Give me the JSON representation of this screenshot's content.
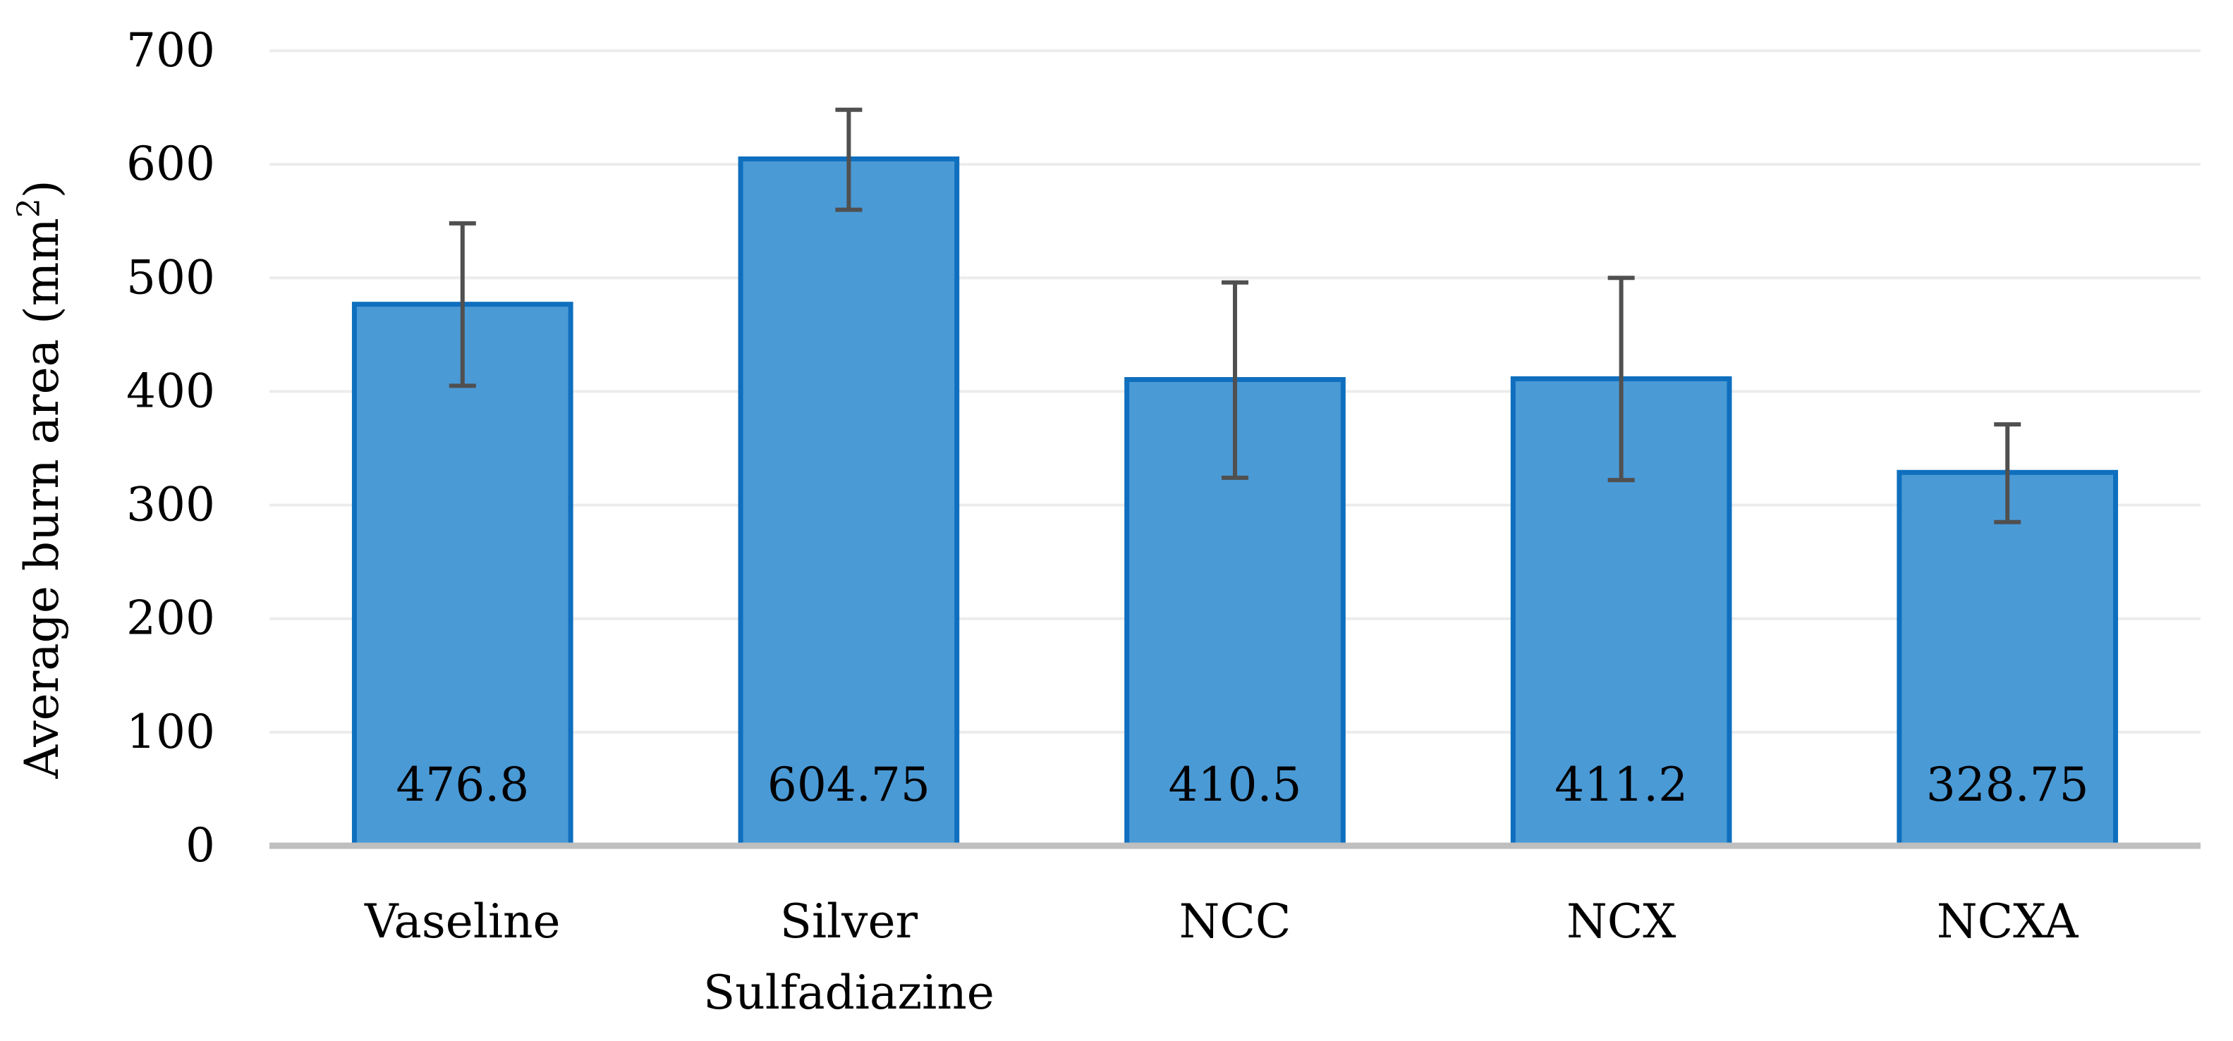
{
  "chart_data": {
    "type": "bar",
    "categories": [
      [
        "Vaseline"
      ],
      [
        "Silver",
        "Sulfadiazine"
      ],
      [
        "NCC"
      ],
      [
        "NCX"
      ],
      [
        "NCXA"
      ]
    ],
    "values": [
      476.8,
      604.75,
      410.5,
      411.2,
      328.75
    ],
    "data_labels": [
      "476.8",
      "604.75",
      "410.5",
      "411.2",
      "328.75"
    ],
    "error_bars": [
      {
        "low": 405,
        "high": 548
      },
      {
        "low": 560,
        "high": 648
      },
      {
        "low": 324,
        "high": 496
      },
      {
        "low": 322,
        "high": 500
      },
      {
        "low": 285,
        "high": 371
      }
    ],
    "title": "",
    "xlabel": "",
    "ylabel": "Average burn area (mm",
    "ylabel_superscript": "2",
    "ylabel_suffix": ")",
    "ylim": [
      0,
      700
    ],
    "yticks": [
      0,
      100,
      200,
      300,
      400,
      500,
      600,
      700
    ],
    "grid": true,
    "legend": "none",
    "colors": {
      "bar_fill": "#4a9ad6",
      "bar_stroke": "#0f6fbe",
      "error_bar": "#505050",
      "grid": "#ececec",
      "axis": "#bfbfbf"
    }
  }
}
